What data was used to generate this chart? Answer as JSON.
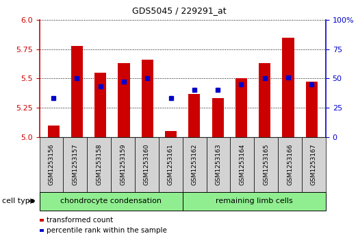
{
  "title": "GDS5045 / 229291_at",
  "samples": [
    "GSM1253156",
    "GSM1253157",
    "GSM1253158",
    "GSM1253159",
    "GSM1253160",
    "GSM1253161",
    "GSM1253162",
    "GSM1253163",
    "GSM1253164",
    "GSM1253165",
    "GSM1253166",
    "GSM1253167"
  ],
  "red_values": [
    5.1,
    5.78,
    5.55,
    5.63,
    5.66,
    5.05,
    5.37,
    5.33,
    5.5,
    5.63,
    5.85,
    5.47
  ],
  "blue_values_pct": [
    33,
    50,
    43,
    47,
    50,
    33,
    40,
    40,
    45,
    50,
    51,
    45
  ],
  "ylim_left": [
    5.0,
    6.0
  ],
  "ylim_right": [
    0,
    100
  ],
  "yticks_left": [
    5.0,
    5.25,
    5.5,
    5.75,
    6.0
  ],
  "yticks_right": [
    0,
    25,
    50,
    75,
    100
  ],
  "group1_label": "chondrocyte condensation",
  "group2_label": "remaining limb cells",
  "group1_count": 6,
  "group2_count": 6,
  "cell_type_label": "cell type",
  "legend_red": "transformed count",
  "legend_blue": "percentile rank within the sample",
  "red_color": "#CC0000",
  "blue_color": "#0000CC",
  "group_bg": "#90EE90",
  "tick_bg": "#D3D3D3",
  "bar_width": 0.5,
  "base_value": 5.0
}
